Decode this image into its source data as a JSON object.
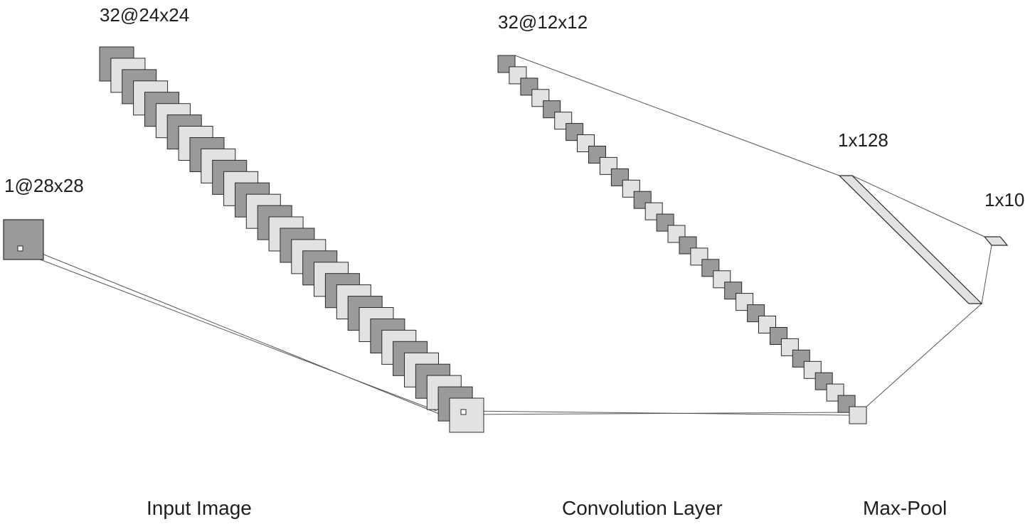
{
  "layers": [
    {
      "id": "input",
      "dim_label": "1@28x28",
      "maps": 1
    },
    {
      "id": "conv",
      "dim_label": "32@24x24",
      "maps": 32
    },
    {
      "id": "pool",
      "dim_label": "32@12x12",
      "maps": 32
    },
    {
      "id": "dense",
      "dim_label": "1x128"
    },
    {
      "id": "output",
      "dim_label": "1x10"
    }
  ],
  "captions": {
    "input": "Input Image",
    "conv": "Convolution Layer",
    "pool": "Max-Pool"
  },
  "colors": {
    "dark_map": "#9a9a9a",
    "light_map": "#e2e2e2",
    "stroke": "#2a2a2a",
    "line": "#555555"
  }
}
